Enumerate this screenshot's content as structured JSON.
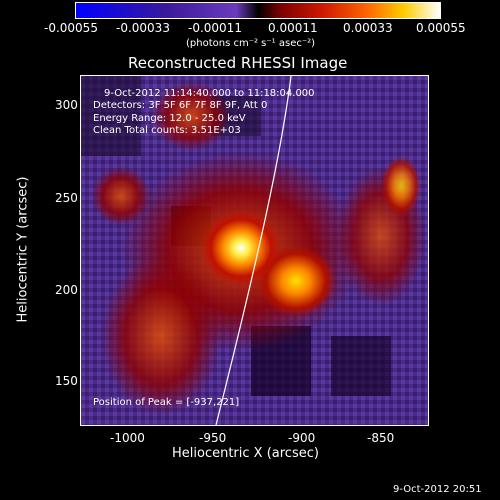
{
  "colorbar": {
    "ticks": [
      "-0.00055",
      "-0.00033",
      "-0.00011",
      "0.00011",
      "0.00033",
      "0.00055"
    ],
    "unit_label": "(photons cm⁻² s⁻¹ asec⁻²)"
  },
  "title": "Reconstructed RHESSI Image",
  "info": {
    "time_range": "9-Oct-2012 11:14:40.000 to 11:18:04.000",
    "detectors": "Detectors: 3F 5F 6F 7F 8F 9F, Att 0",
    "energy": "Energy Range: 12.0 - 25.0 keV",
    "clean": "Clean     Total counts: 3.51E+03",
    "peak": "Position of Peak = [-937,221]"
  },
  "axes": {
    "xlabel": "Heliocentric X (arcsec)",
    "ylabel": "Heliocentric Y (arcsec)",
    "xticks": [
      "-1000",
      "-950",
      "-900",
      "-850"
    ],
    "yticks": [
      "300",
      "250",
      "200",
      "150"
    ]
  },
  "footer": {
    "timestamp": "9-Oct-2012 20:51"
  },
  "colors": {
    "background": "#000000",
    "limb": "#ffffff",
    "purple": "#4b2a8a",
    "red": "#c01000",
    "orange": "#ff7a00",
    "yellow": "#ffe000"
  }
}
